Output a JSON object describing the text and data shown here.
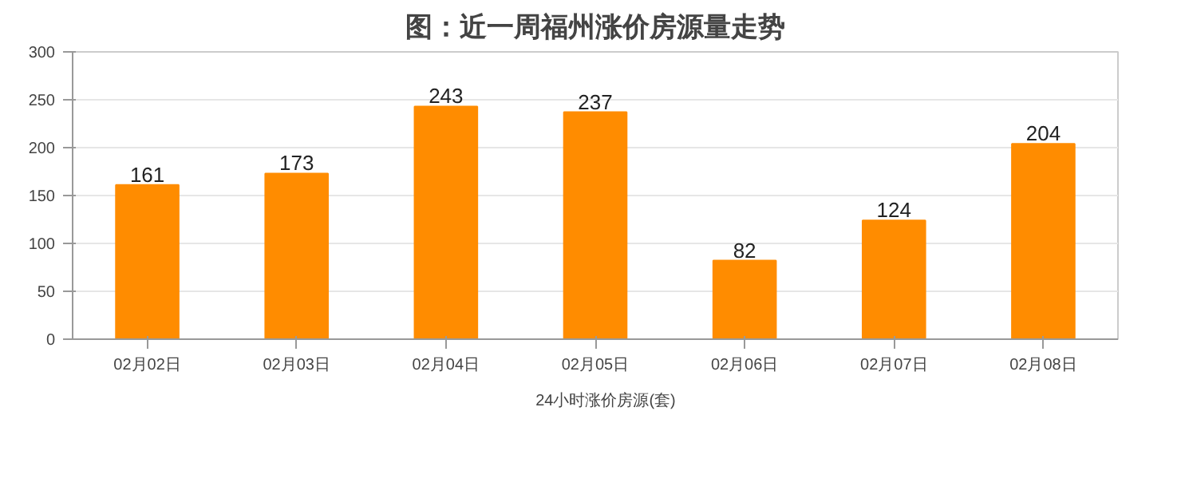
{
  "chart_data": {
    "type": "bar",
    "title": "图：近一周福州涨价房源量走势",
    "categories": [
      "02月02日",
      "02月03日",
      "02月04日",
      "02月05日",
      "02月06日",
      "02月07日",
      "02月08日"
    ],
    "series": [
      {
        "name": "24小时涨价房源(套)",
        "color": "#ff8c00",
        "values": [
          161,
          173,
          243,
          237,
          82,
          124,
          204
        ]
      }
    ],
    "ylim": [
      0,
      300
    ],
    "yticks": [
      0,
      50,
      100,
      150,
      200,
      250,
      300
    ],
    "grid": "y",
    "legend": "bottom",
    "data_labels": true
  }
}
